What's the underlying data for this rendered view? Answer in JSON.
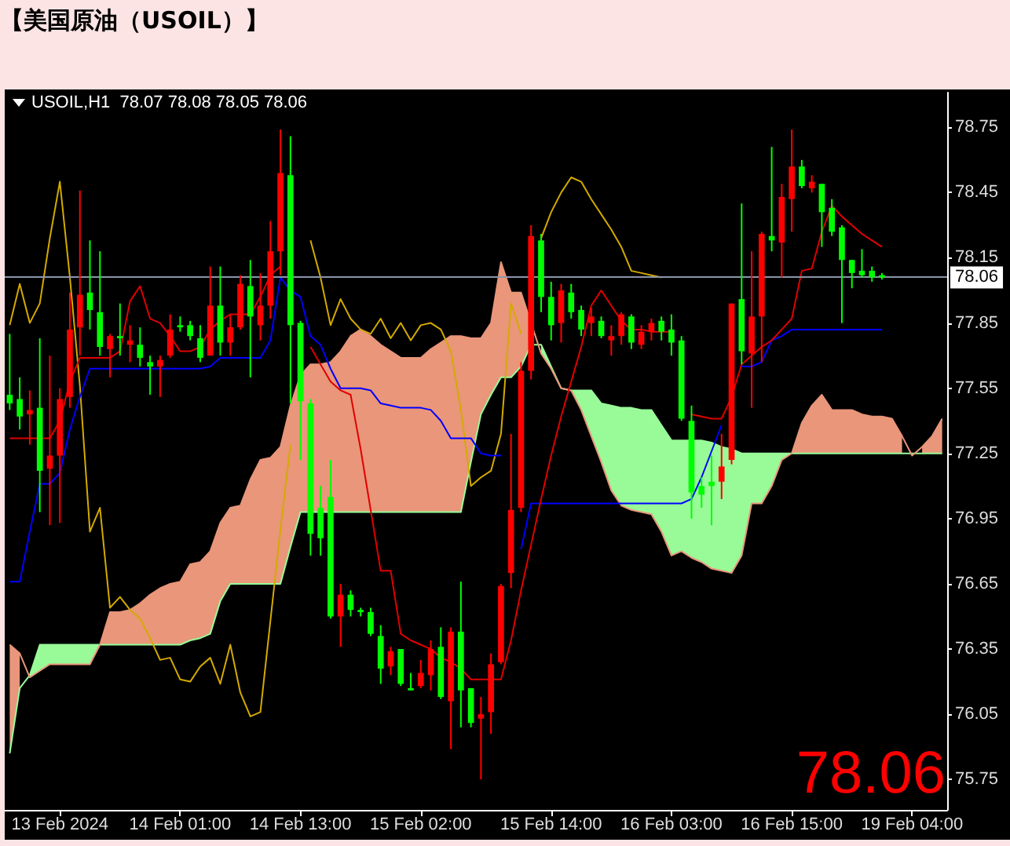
{
  "chart_data": {
    "type": "candlestick",
    "title": "【美国原油（USOIL）】",
    "annotations": [
      "USOIL,H1  78.07 78.08 78.05 78.06",
      "78.06"
    ],
    "categories": [
      null,
      null,
      null,
      null,
      null,
      "13 Feb 2024",
      null,
      null,
      null,
      null,
      null,
      null,
      null,
      null,
      null,
      null,
      null,
      "14 Feb 01:00",
      null,
      null,
      null,
      null,
      null,
      null,
      null,
      null,
      null,
      null,
      null,
      "14 Feb 13:00",
      null,
      null,
      null,
      null,
      null,
      null,
      null,
      null,
      null,
      null,
      null,
      "15 Feb 02:00",
      null,
      null,
      null,
      null,
      null,
      null,
      null,
      null,
      null,
      null,
      null,
      null,
      "15 Feb 14:00",
      null,
      null,
      null,
      null,
      null,
      null,
      null,
      null,
      null,
      null,
      null,
      "16 Feb 03:00",
      null,
      null,
      null,
      null,
      null,
      null,
      null,
      null,
      null,
      null,
      null,
      "16 Feb 15:00",
      null,
      null,
      null,
      null,
      null,
      null,
      null,
      null,
      null,
      null,
      null,
      "19 Feb 04:00",
      null,
      null,
      null
    ],
    "ohlc": [
      [
        77.52,
        77.8,
        77.45,
        77.48
      ],
      [
        77.5,
        77.6,
        77.36,
        77.42
      ],
      [
        77.43,
        77.54,
        77.29,
        77.45
      ],
      [
        77.46,
        77.78,
        76.98,
        77.17
      ],
      [
        77.18,
        77.7,
        76.92,
        77.24
      ],
      [
        77.24,
        77.55,
        76.93,
        77.5
      ],
      [
        77.51,
        77.99,
        77.46,
        77.82
      ],
      [
        77.83,
        78.46,
        77.7,
        77.98
      ],
      [
        77.99,
        78.23,
        77.82,
        77.91
      ],
      [
        77.9,
        78.18,
        77.7,
        77.74
      ],
      [
        77.73,
        77.8,
        77.6,
        77.79
      ],
      [
        77.79,
        77.94,
        77.7,
        77.78
      ],
      [
        77.75,
        77.84,
        77.67,
        77.77
      ],
      [
        77.75,
        77.83,
        77.65,
        77.69
      ],
      [
        77.67,
        77.7,
        77.52,
        77.65
      ],
      [
        77.65,
        77.7,
        77.51,
        77.68
      ],
      [
        77.7,
        77.89,
        77.69,
        77.82
      ],
      [
        77.84,
        77.88,
        77.81,
        77.83
      ],
      [
        77.84,
        77.86,
        77.77,
        77.79
      ],
      [
        77.78,
        77.84,
        77.67,
        77.69
      ],
      [
        77.7,
        78.11,
        77.7,
        77.93
      ],
      [
        77.93,
        78.11,
        77.7,
        77.76
      ],
      [
        77.76,
        77.89,
        77.7,
        77.83
      ],
      [
        77.83,
        78.07,
        77.82,
        78.03
      ],
      [
        78.02,
        78.14,
        77.6,
        77.88
      ],
      [
        77.84,
        78.08,
        77.77,
        77.93
      ],
      [
        77.93,
        78.32,
        77.87,
        78.18
      ],
      [
        78.18,
        78.74,
        78.07,
        78.54
      ],
      [
        78.53,
        78.71,
        77.48,
        77.84
      ],
      [
        77.85,
        77.86,
        77.22,
        77.49
      ],
      [
        77.48,
        77.5,
        76.78,
        76.88
      ],
      [
        77.0,
        77.1,
        76.78,
        76.86
      ],
      [
        77.05,
        77.22,
        76.49,
        76.5
      ],
      [
        76.5,
        76.65,
        76.36,
        76.6
      ],
      [
        76.6,
        76.62,
        76.5,
        76.53
      ],
      [
        76.53,
        76.54,
        76.5,
        76.52
      ],
      [
        76.52,
        76.54,
        76.41,
        76.42
      ],
      [
        76.41,
        76.46,
        76.19,
        76.26
      ],
      [
        76.27,
        76.36,
        76.23,
        76.34
      ],
      [
        76.35,
        76.35,
        76.18,
        76.19
      ],
      [
        76.17,
        76.24,
        76.16,
        76.16
      ],
      [
        76.18,
        76.3,
        76.17,
        76.24
      ],
      [
        76.23,
        76.39,
        76.16,
        76.35
      ],
      [
        76.36,
        76.45,
        76.12,
        76.13
      ],
      [
        76.11,
        76.45,
        75.89,
        76.43
      ],
      [
        76.43,
        76.66,
        75.99,
        76.16
      ],
      [
        76.17,
        76.17,
        75.99,
        76.01
      ],
      [
        76.03,
        76.13,
        75.75,
        76.05
      ],
      [
        76.06,
        76.33,
        75.96,
        76.28
      ],
      [
        76.29,
        76.65,
        76.28,
        76.64
      ],
      [
        76.7,
        77.34,
        76.63,
        76.99
      ],
      [
        77.0,
        77.67,
        76.98,
        77.63
      ],
      [
        77.63,
        78.3,
        77.59,
        78.25
      ],
      [
        78.23,
        78.26,
        77.9,
        77.97
      ],
      [
        77.97,
        78.04,
        77.77,
        77.84
      ],
      [
        77.85,
        78.03,
        77.76,
        78.0
      ],
      [
        77.99,
        78.03,
        77.87,
        77.9
      ],
      [
        77.91,
        77.93,
        77.79,
        77.82
      ],
      [
        77.85,
        77.92,
        77.79,
        77.88
      ],
      [
        77.86,
        77.88,
        77.78,
        77.79
      ],
      [
        77.77,
        77.84,
        77.7,
        77.79
      ],
      [
        77.79,
        77.9,
        77.75,
        77.89
      ],
      [
        77.88,
        77.89,
        77.73,
        77.76
      ],
      [
        77.75,
        77.84,
        77.73,
        77.81
      ],
      [
        77.81,
        77.87,
        77.77,
        77.85
      ],
      [
        77.86,
        77.88,
        77.77,
        77.81
      ],
      [
        77.82,
        77.89,
        77.7,
        77.76
      ],
      [
        77.77,
        77.79,
        77.4,
        77.41
      ],
      [
        77.4,
        77.47,
        76.95,
        77.07
      ],
      [
        77.1,
        77.14,
        77.0,
        77.06
      ],
      [
        77.12,
        77.24,
        76.92,
        77.1
      ],
      [
        77.12,
        77.34,
        77.04,
        77.19
      ],
      [
        77.22,
        77.94,
        77.2,
        77.94
      ],
      [
        77.96,
        78.4,
        77.66,
        77.72
      ],
      [
        77.71,
        78.18,
        77.46,
        77.88
      ],
      [
        77.88,
        78.27,
        77.67,
        78.26
      ],
      [
        78.25,
        78.66,
        78.18,
        78.23
      ],
      [
        78.22,
        78.49,
        78.06,
        78.43
      ],
      [
        78.42,
        78.74,
        78.27,
        78.57
      ],
      [
        78.57,
        78.6,
        78.47,
        78.48
      ],
      [
        78.47,
        78.53,
        78.45,
        78.5
      ],
      [
        78.49,
        78.49,
        78.2,
        78.36
      ],
      [
        78.38,
        78.42,
        78.25,
        78.27
      ],
      [
        78.29,
        78.3,
        77.85,
        78.14
      ],
      [
        78.14,
        78.14,
        78.01,
        78.08
      ],
      [
        78.09,
        78.19,
        78.06,
        78.07
      ],
      [
        78.09,
        78.11,
        78.04,
        78.06
      ],
      [
        78.07,
        78.08,
        78.05,
        78.06
      ],
      null,
      null,
      null,
      null,
      null,
      null
    ],
    "colors": [
      "#00ff00",
      "#00ff00",
      "#ff0000",
      "#00ff00",
      "#ff0000",
      "#ff0000",
      "#ff0000",
      "#ff0000",
      "#00ff00",
      "#00ff00",
      "#ff0000",
      "#00ff00",
      "#ff0000",
      "#00ff00",
      "#00ff00",
      "#ff0000",
      "#ff0000",
      "#00ff00",
      "#00ff00",
      "#00ff00",
      "#ff0000",
      "#00ff00",
      "#ff0000",
      "#ff0000",
      "#00ff00",
      "#ff0000",
      "#ff0000",
      "#ff0000",
      "#00ff00",
      "#00ff00",
      "#00ff00",
      "#00ff00",
      "#00ff00",
      "#ff0000",
      "#00ff00",
      "#00ff00",
      "#00ff00",
      "#00ff00",
      "#ff0000",
      "#00ff00",
      "#00ff00",
      "#ff0000",
      "#ff0000",
      "#00ff00",
      "#ff0000",
      "#00ff00",
      "#00ff00",
      "#ff0000",
      "#ff0000",
      "#ff0000",
      "#ff0000",
      "#ff0000",
      "#ff0000",
      "#00ff00",
      "#00ff00",
      "#ff0000",
      "#00ff00",
      "#00ff00",
      "#ff0000",
      "#00ff00",
      "#ff0000",
      "#ff0000",
      "#00ff00",
      "#ff0000",
      "#ff0000",
      "#00ff00",
      "#00ff00",
      "#00ff00",
      "#00ff00",
      "#00ff00",
      "#00ff00",
      "#ff0000",
      "#ff0000",
      "#00ff00",
      "#ff0000",
      "#ff0000",
      "#00ff00",
      "#ff0000",
      "#ff0000",
      "#00ff00",
      "#ff0000",
      "#00ff00",
      "#00ff00",
      "#00ff00",
      "#00ff00",
      "#00ff00",
      "#00ff00",
      "#00ff00",
      null,
      null,
      null,
      null,
      null,
      null
    ],
    "series": [
      {
        "type": "line",
        "color": "#98fb98",
        "lower": [
          null,
          null,
          76.22,
          76.25,
          76.28,
          76.28,
          76.28,
          76.28,
          76.28,
          76.37,
          null,
          null,
          null,
          null,
          null,
          null,
          null,
          null,
          null,
          null,
          null,
          null,
          null,
          null,
          null,
          null,
          null,
          null,
          null,
          null,
          null,
          null,
          null,
          null,
          null,
          null,
          null,
          null,
          null,
          null,
          null,
          null,
          null,
          null,
          null,
          null,
          null,
          null,
          null,
          null,
          null,
          null,
          null,
          77.71,
          77.64,
          77.55,
          77.54,
          77.45,
          77.33,
          77.21,
          77.08,
          77.01,
          76.99,
          76.98,
          76.97,
          76.89,
          76.78,
          76.8,
          76.77,
          76.75,
          76.72,
          76.71,
          76.7,
          76.78,
          77.02,
          77.02,
          77.1,
          77.22,
          77.25,
          null,
          null,
          null,
          null,
          null,
          null,
          null,
          null,
          null,
          null,
          null,
          null,
          null,
          null,
          null
        ],
        "upper": [
          null,
          null,
          76.23,
          76.37,
          76.37,
          76.37,
          76.37,
          76.37,
          76.37,
          76.37,
          null,
          null,
          null,
          null,
          null,
          null,
          null,
          null,
          null,
          null,
          null,
          null,
          null,
          null,
          null,
          null,
          null,
          null,
          null,
          null,
          null,
          null,
          null,
          null,
          null,
          null,
          null,
          null,
          null,
          null,
          null,
          null,
          null,
          null,
          null,
          null,
          null,
          null,
          null,
          null,
          null,
          null,
          null,
          77.75,
          77.65,
          77.55,
          77.54,
          77.54,
          77.54,
          77.48,
          77.47,
          77.46,
          77.46,
          77.45,
          77.45,
          77.38,
          77.31,
          77.31,
          77.31,
          77.31,
          77.3,
          77.28,
          77.27,
          77.25,
          77.25,
          77.25,
          77.25,
          77.25,
          77.25,
          null,
          null,
          null,
          null,
          null,
          null,
          null,
          null,
          null,
          null,
          null,
          null,
          null,
          null,
          null
        ],
        "values": [
          75.87,
          76.17,
          76.23,
          76.37,
          76.37,
          76.37,
          76.37,
          76.37,
          76.37,
          76.37,
          76.37,
          76.37,
          76.37,
          76.37,
          76.37,
          76.37,
          76.37,
          76.37,
          76.39,
          76.4,
          76.42,
          76.57,
          76.65,
          76.65,
          76.65,
          76.65,
          76.65,
          76.65,
          76.82,
          76.98,
          76.98,
          76.98,
          76.98,
          76.98,
          76.98,
          76.98,
          76.98,
          76.98,
          76.98,
          76.98,
          76.98,
          76.98,
          76.98,
          76.98,
          76.98,
          76.98,
          77.21,
          77.43,
          77.52,
          77.6,
          77.6,
          77.65,
          77.75,
          77.75,
          77.65,
          77.55,
          77.54,
          77.54,
          77.54,
          77.48,
          77.47,
          77.46,
          77.46,
          77.45,
          77.45,
          77.38,
          77.31,
          77.31,
          77.31,
          77.31,
          77.3,
          77.28,
          77.27,
          77.25,
          77.25,
          77.25,
          77.25,
          77.25,
          77.25,
          77.25,
          77.25,
          77.25,
          77.25,
          77.25,
          77.25,
          77.25,
          77.25,
          77.25,
          77.25,
          77.25,
          77.25,
          77.25,
          77.25,
          77.25
        ]
      },
      {
        "type": "line",
        "color": "#e9967a",
        "lower": [
          75.87,
          76.17,
          null,
          null,
          null,
          null,
          null,
          null,
          null,
          76.37,
          76.37,
          76.37,
          76.37,
          76.37,
          76.37,
          76.37,
          76.37,
          76.37,
          76.39,
          76.4,
          76.42,
          76.57,
          76.65,
          76.65,
          76.65,
          76.65,
          76.65,
          76.65,
          76.82,
          76.98,
          76.98,
          76.98,
          76.98,
          76.98,
          76.98,
          76.98,
          76.98,
          76.98,
          76.98,
          76.98,
          76.98,
          76.98,
          76.98,
          76.98,
          76.98,
          76.98,
          77.21,
          77.43,
          77.52,
          77.6,
          77.6,
          77.65,
          77.75,
          null,
          null,
          null,
          null,
          null,
          null,
          null,
          null,
          null,
          null,
          null,
          null,
          null,
          null,
          null,
          null,
          null,
          null,
          null,
          null,
          null,
          null,
          null,
          null,
          null,
          77.25,
          77.25,
          77.25,
          77.25,
          77.25,
          77.25,
          77.25,
          77.25,
          77.25,
          77.25,
          77.25,
          77.25,
          null,
          77.25,
          77.25,
          77.25
        ],
        "upper": [
          76.37,
          76.33,
          null,
          null,
          null,
          null,
          null,
          null,
          null,
          76.37,
          76.52,
          76.52,
          76.53,
          76.56,
          76.6,
          76.63,
          76.65,
          76.66,
          76.74,
          76.75,
          76.8,
          76.93,
          77.0,
          77.01,
          77.13,
          77.22,
          77.23,
          77.28,
          77.47,
          77.61,
          77.66,
          77.66,
          77.67,
          77.72,
          77.79,
          77.82,
          77.79,
          77.75,
          77.72,
          77.69,
          77.69,
          77.69,
          77.73,
          77.76,
          77.79,
          77.79,
          77.78,
          77.78,
          77.85,
          78.13,
          77.99,
          77.99,
          77.85,
          null,
          null,
          null,
          null,
          null,
          null,
          null,
          null,
          null,
          null,
          null,
          null,
          null,
          null,
          null,
          null,
          null,
          null,
          null,
          null,
          null,
          null,
          null,
          null,
          null,
          77.25,
          77.39,
          77.47,
          77.52,
          77.45,
          77.45,
          77.45,
          77.43,
          77.42,
          77.42,
          77.41,
          77.33,
          null,
          77.28,
          77.33,
          77.41
        ],
        "values": [
          76.37,
          76.33,
          76.22,
          76.25,
          76.28,
          76.28,
          76.28,
          76.28,
          76.28,
          76.37,
          76.52,
          76.52,
          76.53,
          76.56,
          76.6,
          76.63,
          76.65,
          76.66,
          76.74,
          76.75,
          76.8,
          76.93,
          77.0,
          77.01,
          77.13,
          77.22,
          77.23,
          77.28,
          77.47,
          77.61,
          77.66,
          77.66,
          77.67,
          77.72,
          77.79,
          77.82,
          77.79,
          77.75,
          77.72,
          77.69,
          77.69,
          77.69,
          77.73,
          77.76,
          77.79,
          77.79,
          77.78,
          77.78,
          77.85,
          78.13,
          77.99,
          77.99,
          77.85,
          77.71,
          77.64,
          77.55,
          77.54,
          77.45,
          77.33,
          77.21,
          77.08,
          77.01,
          76.99,
          76.98,
          76.97,
          76.89,
          76.78,
          76.8,
          76.77,
          76.75,
          76.72,
          76.71,
          76.7,
          76.78,
          77.02,
          77.02,
          77.1,
          77.22,
          77.25,
          77.39,
          77.47,
          77.52,
          77.45,
          77.45,
          77.45,
          77.43,
          77.42,
          77.42,
          77.41,
          77.33,
          77.24,
          77.28,
          77.33,
          77.41
        ]
      },
      {
        "type": "line",
        "color": "#d4aa00",
        "values": [
          77.84,
          78.03,
          77.85,
          77.94,
          78.24,
          78.5,
          78.06,
          77.56,
          76.89,
          77.0,
          76.54,
          76.59,
          76.53,
          76.49,
          76.4,
          76.3,
          76.31,
          76.21,
          76.2,
          76.27,
          76.31,
          76.19,
          76.37,
          76.15,
          76.04,
          76.06,
          76.48,
          76.9,
          77.29,
          null,
          78.23,
          78.06,
          77.84,
          77.96,
          77.87,
          77.82,
          77.8,
          77.87,
          77.78,
          77.85,
          77.77,
          77.84,
          77.85,
          77.82,
          77.72,
          77.45,
          77.1,
          77.14,
          77.17,
          77.34,
          77.94,
          77.8,
          null,
          78.24,
          78.36,
          78.45,
          78.52,
          78.5,
          78.42,
          78.35,
          78.28,
          78.2,
          78.09,
          78.08,
          78.07,
          78.06,
          null,
          null,
          null,
          null,
          null,
          null,
          null,
          null,
          null,
          null,
          null,
          null,
          null,
          null,
          null,
          null,
          null,
          null,
          null,
          null,
          null,
          null,
          null,
          null,
          null,
          null,
          null,
          null
        ]
      },
      {
        "type": "line",
        "color": "#0000ff",
        "values": [
          76.66,
          76.66,
          76.89,
          77.11,
          77.11,
          77.16,
          77.36,
          77.51,
          77.64,
          77.64,
          77.64,
          77.64,
          77.64,
          77.64,
          77.64,
          77.64,
          77.64,
          77.64,
          77.64,
          77.64,
          77.65,
          77.69,
          77.69,
          77.69,
          77.69,
          77.69,
          77.77,
          78.06,
          78.0,
          77.97,
          77.79,
          77.75,
          77.64,
          77.55,
          77.55,
          77.55,
          77.54,
          77.48,
          77.47,
          77.46,
          77.46,
          77.46,
          77.45,
          77.4,
          77.32,
          77.32,
          77.32,
          77.25,
          77.24,
          77.24,
          null,
          76.81,
          77.02,
          77.02,
          77.02,
          77.02,
          77.02,
          77.02,
          77.02,
          77.02,
          77.02,
          77.02,
          77.02,
          77.02,
          77.02,
          77.02,
          77.02,
          77.02,
          77.04,
          77.14,
          77.26,
          77.38,
          null,
          77.65,
          77.65,
          77.67,
          77.77,
          77.79,
          77.82,
          77.82,
          77.82,
          77.82,
          77.82,
          77.82,
          77.82,
          77.82,
          77.82,
          77.82,
          null,
          null,
          null,
          null,
          null,
          null
        ]
      },
      {
        "type": "line",
        "color": "#e00000",
        "values": [
          77.32,
          77.32,
          77.32,
          77.32,
          77.32,
          77.4,
          77.58,
          77.69,
          77.69,
          77.69,
          77.69,
          77.72,
          77.95,
          78.02,
          77.87,
          77.85,
          77.79,
          77.72,
          77.72,
          77.74,
          77.82,
          77.86,
          77.89,
          77.89,
          77.89,
          77.97,
          78.07,
          78.11,
          null,
          null,
          77.74,
          77.66,
          77.58,
          77.54,
          77.52,
          77.27,
          76.99,
          76.71,
          76.71,
          76.42,
          76.39,
          76.37,
          76.35,
          76.31,
          76.29,
          76.26,
          76.21,
          76.21,
          76.21,
          76.21,
          76.39,
          76.62,
          76.83,
          77.04,
          77.24,
          77.42,
          77.58,
          77.74,
          77.93,
          78.0,
          77.93,
          77.86,
          77.82,
          77.82,
          77.81,
          77.81,
          77.81,
          null,
          77.43,
          77.42,
          77.41,
          77.41,
          77.51,
          77.66,
          77.7,
          77.74,
          77.77,
          77.82,
          77.87,
          78.09,
          78.1,
          78.27,
          78.39,
          78.34,
          78.3,
          78.26,
          78.23,
          78.2,
          null,
          null,
          null,
          null,
          null,
          null
        ]
      }
    ],
    "ref_lines": [
      {
        "axis": "y",
        "value": 78.06,
        "label": "78.06",
        "color": "#8c96a8"
      }
    ],
    "ylim": [
      75.61,
      78.91
    ],
    "yticks": [
      75.75,
      76.05,
      76.35,
      76.65,
      76.95,
      77.25,
      77.55,
      77.85,
      78.15,
      78.45,
      78.75
    ]
  }
}
